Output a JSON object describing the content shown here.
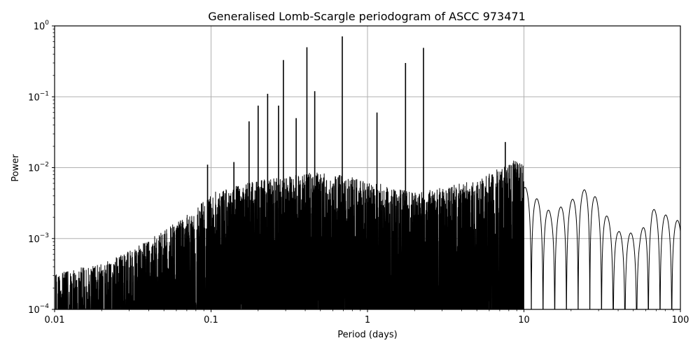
{
  "chart_data": {
    "type": "line",
    "title": "Generalised Lomb-Scargle periodogram of ASCC 973471",
    "xlabel": "Period (days)",
    "ylabel": "Power",
    "xscale": "log",
    "yscale": "log",
    "xlim": [
      0.01,
      100
    ],
    "ylim": [
      0.0001,
      1
    ],
    "grid": true,
    "legend": null,
    "x_ticks": [
      {
        "value": 0.01,
        "label": "0.01"
      },
      {
        "value": 0.1,
        "label": "0.1"
      },
      {
        "value": 1,
        "label": "1"
      },
      {
        "value": 10,
        "label": "10"
      },
      {
        "value": 100,
        "label": "100"
      }
    ],
    "y_ticks": [
      {
        "value": 1,
        "base": "10",
        "exp": "0"
      },
      {
        "value": 0.1,
        "base": "10",
        "exp": "−1"
      },
      {
        "value": 0.01,
        "base": "10",
        "exp": "−2"
      },
      {
        "value": 0.001,
        "base": "10",
        "exp": "−3"
      },
      {
        "value": 0.0001,
        "base": "10",
        "exp": "−4"
      }
    ],
    "line_color": "#000000",
    "grid_color": "#b0b0b0",
    "dominant_peaks": [
      {
        "period": 0.69,
        "power": 0.71
      },
      {
        "period": 0.41,
        "power": 0.5
      },
      {
        "period": 2.28,
        "power": 0.49
      },
      {
        "period": 0.29,
        "power": 0.33
      },
      {
        "period": 1.75,
        "power": 0.3
      },
      {
        "period": 0.46,
        "power": 0.12
      },
      {
        "period": 0.23,
        "power": 0.11
      },
      {
        "period": 0.2,
        "power": 0.075
      },
      {
        "period": 1.15,
        "power": 0.06
      },
      {
        "period": 0.27,
        "power": 0.075
      },
      {
        "period": 0.35,
        "power": 0.05
      },
      {
        "period": 0.175,
        "power": 0.045
      },
      {
        "period": 7.6,
        "power": 0.023
      },
      {
        "period": 0.14,
        "power": 0.012
      },
      {
        "period": 0.095,
        "power": 0.011
      }
    ],
    "envelope": {
      "description": "Dense forest of aliased peaks; noise floor rises from ~1e-4 at P=0.01 d to ~3e-3 near P=1 d; smooth oscillating curve beyond ~10 d",
      "points": [
        {
          "period": 0.01,
          "power": 0.00015
        },
        {
          "period": 0.02,
          "power": 0.0002
        },
        {
          "period": 0.03,
          "power": 0.0003
        },
        {
          "period": 0.05,
          "power": 0.0006
        },
        {
          "period": 0.08,
          "power": 0.0012
        },
        {
          "period": 0.1,
          "power": 0.002
        },
        {
          "period": 0.2,
          "power": 0.003
        },
        {
          "period": 0.5,
          "power": 0.004
        },
        {
          "period": 1,
          "power": 0.003
        },
        {
          "period": 2,
          "power": 0.002
        },
        {
          "period": 5,
          "power": 0.003
        },
        {
          "period": 9,
          "power": 0.006
        },
        {
          "period": 15,
          "power": 0.002
        },
        {
          "period": 20,
          "power": 0.003
        },
        {
          "period": 26,
          "power": 0.0048
        },
        {
          "period": 34,
          "power": 0.0018
        },
        {
          "period": 40,
          "power": 0.0011
        },
        {
          "period": 55,
          "power": 0.001
        },
        {
          "period": 66,
          "power": 0.0023
        },
        {
          "period": 100,
          "power": 0.0015
        }
      ]
    }
  }
}
